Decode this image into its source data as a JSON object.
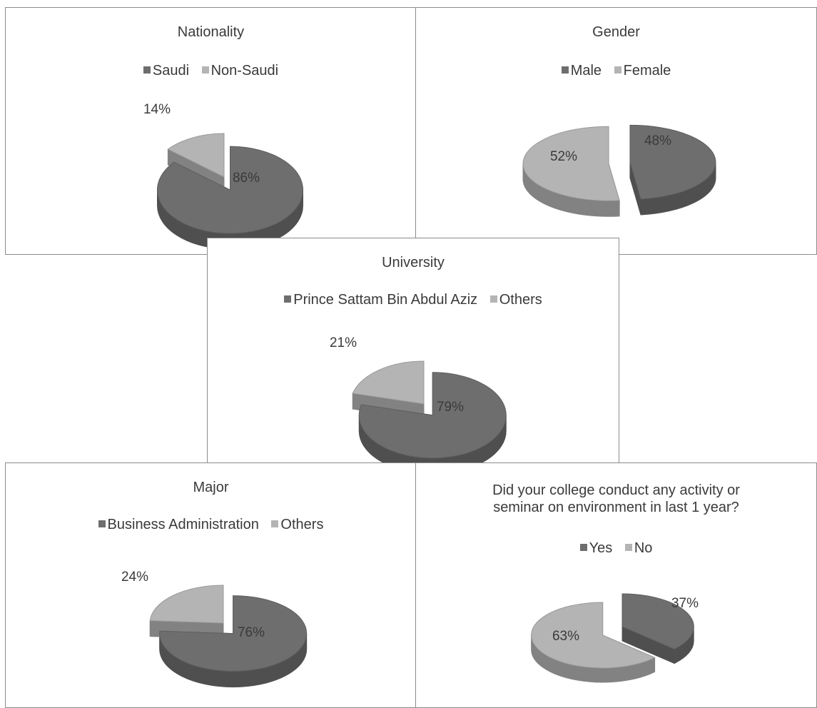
{
  "chart_data": [
    {
      "type": "pie",
      "title": "Nationality",
      "legend_position": "top",
      "series": [
        {
          "name": "Saudi",
          "value": 86,
          "label": "86%",
          "color": "#6e6e6e"
        },
        {
          "name": "Non-Saudi",
          "value": 14,
          "label": "14%",
          "color": "#b4b4b4"
        }
      ]
    },
    {
      "type": "pie",
      "title": "Gender",
      "legend_position": "top",
      "series": [
        {
          "name": "Male",
          "value": 48,
          "label": "48%",
          "color": "#6e6e6e"
        },
        {
          "name": "Female",
          "value": 52,
          "label": "52%",
          "color": "#b4b4b4"
        }
      ]
    },
    {
      "type": "pie",
      "title": "University",
      "legend_position": "top",
      "series": [
        {
          "name": "Prince Sattam Bin Abdul Aziz",
          "value": 79,
          "label": "79%",
          "color": "#6e6e6e"
        },
        {
          "name": "Others",
          "value": 21,
          "label": "21%",
          "color": "#b4b4b4"
        }
      ]
    },
    {
      "type": "pie",
      "title": "Major",
      "legend_position": "top",
      "series": [
        {
          "name": "Business Administration",
          "value": 76,
          "label": "76%",
          "color": "#6e6e6e"
        },
        {
          "name": "Others",
          "value": 24,
          "label": "24%",
          "color": "#b4b4b4"
        }
      ]
    },
    {
      "type": "pie",
      "title_lines": [
        "Did your college conduct any activity  or",
        "seminar on environment in last 1 year?"
      ],
      "legend_position": "top",
      "series": [
        {
          "name": "Yes",
          "value": 37,
          "label": "37%",
          "color": "#6e6e6e"
        },
        {
          "name": "No",
          "value": 63,
          "label": "63%",
          "color": "#b4b4b4"
        }
      ]
    }
  ]
}
